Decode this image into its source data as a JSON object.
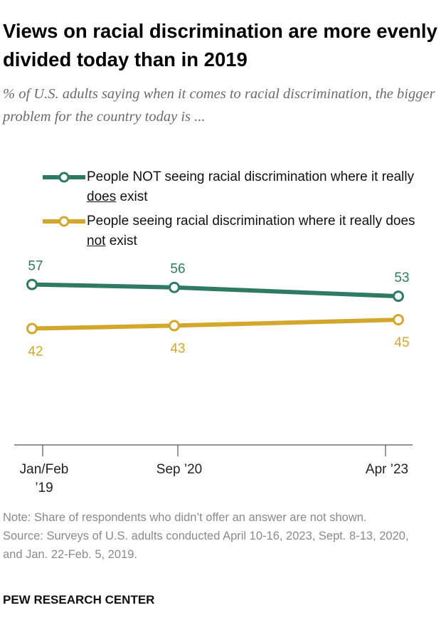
{
  "chart_data": {
    "type": "line",
    "title": "Views on racial discrimination are more evenly divided today than in 2019",
    "subtitle": "% of U.S. adults saying when it comes to racial discrimination, the bigger problem for the country today is ...",
    "categories": [
      "Jan/Feb ’19",
      "Sep ’20",
      "Apr ’23"
    ],
    "series": [
      {
        "name": "People NOT seeing racial discrimination where it really does exist",
        "color": "#2f7a64",
        "values": [
          57,
          56,
          53
        ]
      },
      {
        "name": "People seeing racial discrimination where it really does not exist",
        "color": "#d3a72c",
        "values": [
          42,
          43,
          45
        ]
      }
    ],
    "ylim": [
      0,
      100
    ],
    "note": "Note: Share of respondents who didn’t offer an answer are not shown.",
    "source": "Source: Surveys of U.S. adults conducted April 10-16, 2023, Sept. 8-13, 2020, and Jan. 22-Feb. 5, 2019.",
    "footer": "PEW RESEARCH CENTER"
  }
}
